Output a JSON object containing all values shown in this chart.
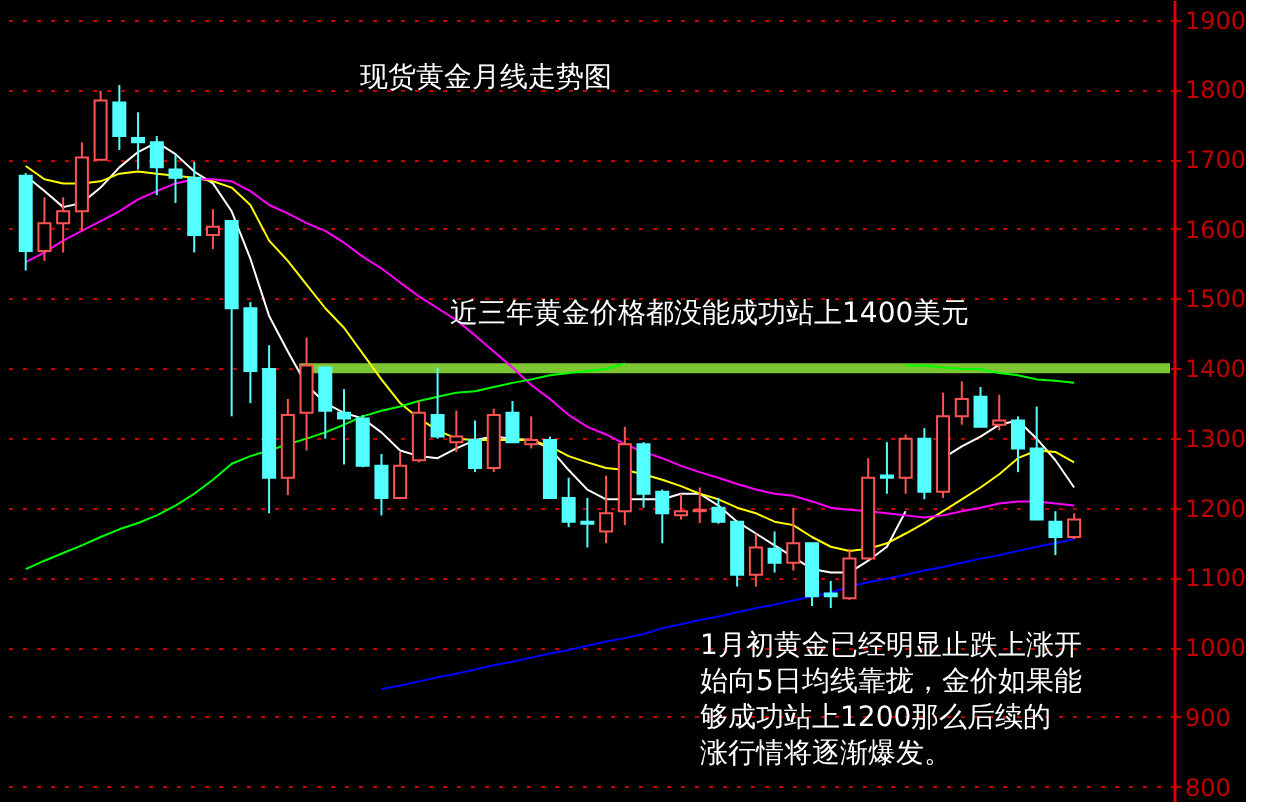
{
  "chart_data": {
    "type": "candlestick",
    "categories": [
      null,
      null,
      null,
      null,
      null,
      null,
      null,
      null,
      null,
      null,
      null,
      null,
      null,
      null,
      null,
      null,
      null,
      null,
      null,
      null,
      null,
      null,
      null,
      null,
      null,
      null,
      null,
      null,
      null,
      null,
      null,
      null,
      null,
      null,
      null,
      null,
      null,
      null,
      null,
      null,
      null,
      null,
      null,
      null,
      null,
      null,
      null,
      null,
      null,
      null,
      null,
      null,
      null,
      null,
      null,
      null,
      null
    ],
    "ohlc": [
      [
        1676,
        1680,
        1540,
        1568
      ],
      [
        1568,
        1645,
        1554,
        1608
      ],
      [
        1608,
        1645,
        1566,
        1625
      ],
      [
        1625,
        1724,
        1597,
        1702
      ],
      [
        1699,
        1798,
        1699,
        1784
      ],
      [
        1781,
        1806,
        1713,
        1733
      ],
      [
        1730,
        1767,
        1685,
        1724
      ],
      [
        1724,
        1733,
        1648,
        1688
      ],
      [
        1685,
        1707,
        1637,
        1673
      ],
      [
        1673,
        1696,
        1566,
        1591
      ],
      [
        1591,
        1628,
        1571,
        1603
      ],
      [
        1611,
        1611,
        1331,
        1486
      ],
      [
        1486,
        1495,
        1350,
        1396
      ],
      [
        1399,
        1433,
        1192,
        1243
      ],
      [
        1243,
        1356,
        1218,
        1333
      ],
      [
        1336,
        1444,
        1282,
        1404
      ],
      [
        1401,
        1401,
        1299,
        1339
      ],
      [
        1336,
        1370,
        1262,
        1328
      ],
      [
        1328,
        1333,
        1258,
        1260
      ],
      [
        1260,
        1277,
        1189,
        1214
      ],
      [
        1214,
        1280,
        1212,
        1260
      ],
      [
        1268,
        1353,
        1265,
        1336
      ],
      [
        1333,
        1401,
        1299,
        1302
      ],
      [
        1294,
        1339,
        1280,
        1302
      ],
      [
        1297,
        1325,
        1251,
        1257
      ],
      [
        1257,
        1342,
        1251,
        1333
      ],
      [
        1336,
        1353,
        1294,
        1294
      ],
      [
        1291,
        1331,
        1285,
        1297
      ],
      [
        1297,
        1302,
        1214,
        1214
      ],
      [
        1214,
        1243,
        1172,
        1180
      ],
      [
        1180,
        1214,
        1143,
        1177
      ],
      [
        1166,
        1246,
        1149,
        1192
      ],
      [
        1195,
        1316,
        1175,
        1291
      ],
      [
        1291,
        1294,
        1200,
        1220
      ],
      [
        1223,
        1226,
        1149,
        1192
      ],
      [
        1189,
        1220,
        1183,
        1195
      ],
      [
        1195,
        1229,
        1178,
        1197
      ],
      [
        1200,
        1214,
        1177,
        1180
      ],
      [
        1180,
        1180,
        1087,
        1104
      ],
      [
        1104,
        1163,
        1087,
        1143
      ],
      [
        1141,
        1166,
        1107,
        1121
      ],
      [
        1121,
        1200,
        1110,
        1149
      ],
      [
        1149,
        1149,
        1059,
        1073
      ],
      [
        1077,
        1095,
        1056,
        1073
      ],
      [
        1070,
        1141,
        1068,
        1127
      ],
      [
        1127,
        1271,
        1127,
        1243
      ],
      [
        1246,
        1294,
        1220,
        1243
      ],
      [
        1243,
        1305,
        1220,
        1299
      ],
      [
        1299,
        1314,
        1212,
        1223
      ],
      [
        1223,
        1365,
        1214,
        1331
      ],
      [
        1331,
        1381,
        1319,
        1356
      ],
      [
        1359,
        1373,
        1316,
        1316
      ],
      [
        1319,
        1362,
        1311,
        1325
      ],
      [
        1325,
        1331,
        1251,
        1285
      ],
      [
        1285,
        1345,
        1183,
        1183
      ],
      [
        1180,
        1195,
        1132,
        1158
      ],
      [
        1158,
        1192,
        1155,
        1183
      ]
    ],
    "colors": [
      "#54ffff",
      "#ff5454",
      "#ff5454",
      "#ff5454",
      "#ff5454",
      "#54ffff",
      "#54ffff",
      "#54ffff",
      "#54ffff",
      "#54ffff",
      "#ff5454",
      "#54ffff",
      "#54ffff",
      "#54ffff",
      "#ff5454",
      "#ff5454",
      "#54ffff",
      "#54ffff",
      "#54ffff",
      "#54ffff",
      "#ff5454",
      "#ff5454",
      "#54ffff",
      "#ff5454",
      "#54ffff",
      "#ff5454",
      "#54ffff",
      "#ff5454",
      "#54ffff",
      "#54ffff",
      "#54ffff",
      "#ff5454",
      "#ff5454",
      "#54ffff",
      "#54ffff",
      "#ff5454",
      "#ff5454",
      "#54ffff",
      "#54ffff",
      "#ff5454",
      "#54ffff",
      "#ff5454",
      "#54ffff",
      "#54ffff",
      "#ff5454",
      "#ff5454",
      "#54ffff",
      "#ff5454",
      "#54ffff",
      "#ff5454",
      "#ff5454",
      "#54ffff",
      "#ff5454",
      "#54ffff",
      "#54ffff",
      "#54ffff",
      "#ff5454"
    ],
    "series": [
      {
        "type": "line",
        "color": "#ffffff",
        "values": [
          1676,
          1654,
          1631,
          1637,
          1659,
          1688,
          1710,
          1724,
          1707,
          1682,
          1665,
          1625,
          1557,
          1475,
          1424,
          1376,
          1350,
          1336,
          1328,
          1308,
          1282,
          1274,
          1271,
          1285,
          1297,
          1302,
          1299,
          1297,
          1285,
          1254,
          1226,
          1212,
          1212,
          1212,
          1212,
          1220,
          1220,
          1203,
          1180,
          1163,
          1146,
          1129,
          1112,
          1107,
          1107,
          1124,
          1144,
          1195,
          null,
          1271,
          1288,
          1302,
          1319,
          1325,
          1299,
          1268,
          1229
        ]
      },
      {
        "type": "line",
        "color": "#ffff00",
        "values": [
          1690,
          1671,
          1665,
          1665,
          1668,
          1679,
          1682,
          1679,
          1676,
          1673,
          1668,
          1659,
          1634,
          1583,
          1554,
          1520,
          1486,
          1458,
          1421,
          1384,
          1350,
          1328,
          1311,
          1299,
          1297,
          1297,
          1297,
          1297,
          1288,
          1274,
          1265,
          1257,
          1254,
          1248,
          1240,
          1231,
          1220,
          1212,
          1200,
          1192,
          1180,
          1175,
          1158,
          1144,
          1138,
          1141,
          1149,
          1163,
          1178,
          1195,
          1212,
          1229,
          1248,
          1271,
          1282,
          1280,
          1265
        ]
      },
      {
        "type": "line",
        "color": "#ff00ff",
        "values": [
          1552,
          1566,
          1583,
          1597,
          1611,
          1625,
          1642,
          1654,
          1665,
          1671,
          1671,
          1668,
          1654,
          1634,
          1622,
          1608,
          1597,
          1580,
          1560,
          1543,
          1523,
          1503,
          1486,
          1469,
          1447,
          1424,
          1401,
          1376,
          1356,
          1333,
          1316,
          1305,
          1291,
          1280,
          1271,
          1260,
          1251,
          1243,
          1234,
          1226,
          1220,
          1217,
          1209,
          1200,
          1197,
          1195,
          1192,
          1189,
          1186,
          1189,
          1195,
          1200,
          1206,
          1209,
          1209,
          1206,
          1203
        ]
      },
      {
        "type": "line",
        "color": "#00ff00",
        "values": [
          1112,
          1124,
          1135,
          1146,
          1158,
          1169,
          1178,
          1189,
          1203,
          1220,
          1240,
          1263,
          1274,
          1282,
          1291,
          1299,
          1308,
          1319,
          1331,
          1339,
          1345,
          1353,
          1359,
          1365,
          1367,
          1373,
          1379,
          1384,
          1390,
          1393,
          1396,
          1399,
          1407,
          null,
          null,
          null,
          null,
          null,
          null,
          null,
          null,
          null,
          null,
          null,
          null,
          null,
          null,
          1404,
          1404,
          1401,
          1399,
          1399,
          1393,
          1390,
          1384,
          1382,
          1379
        ]
      },
      {
        "type": "line",
        "color": "#0000ff",
        "values": [
          null,
          null,
          null,
          null,
          null,
          null,
          null,
          null,
          null,
          null,
          null,
          null,
          null,
          null,
          null,
          null,
          null,
          null,
          null,
          940,
          945,
          951,
          957,
          962,
          968,
          974,
          979,
          985,
          991,
          996,
          1002,
          1008,
          1013,
          1019,
          1027,
          1033,
          1039,
          1044,
          1050,
          1056,
          1061,
          1067,
          1073,
          1078,
          1087,
          1093,
          1098,
          1104,
          1110,
          1115,
          1121,
          1127,
          1132,
          1138,
          1144,
          1149,
          1155
        ]
      }
    ],
    "ylim": [
      778,
      1928
    ],
    "yticks": [
      800,
      900,
      1000,
      1100,
      1200,
      1300,
      1400,
      1500,
      1600,
      1700,
      1800,
      1900
    ],
    "grid": "y",
    "tick_labels": "y",
    "ref_lines": [
      {
        "axis": "y",
        "value": 1400,
        "color": "#7dc832"
      }
    ],
    "annotations": [
      "现货黄金月线走势图",
      "近三年黄金价格都没能成功站上1400美元",
      "1月初黄金已经明显止跌上涨开始向5日均线靠拢，金价如果能够成功站上1200那么后续的涨行情将逐渐爆发。"
    ]
  }
}
